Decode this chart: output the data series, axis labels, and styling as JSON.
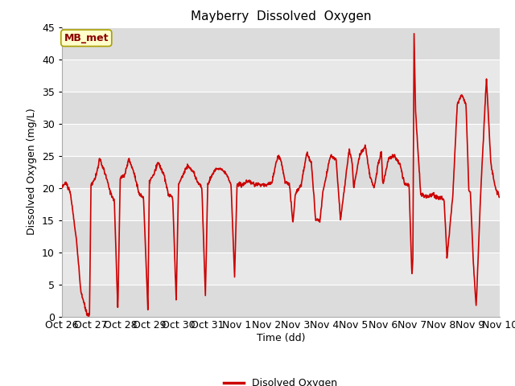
{
  "title": "Mayberry  Dissolved  Oxygen",
  "xlabel": "Time (dd)",
  "ylabel": "Dissolved Oxygen (mg/L)",
  "legend_label": "Disolved Oxygen",
  "annotation_text": "MB_met",
  "ylim": [
    0,
    45
  ],
  "line_color": "#cc0000",
  "line_width": 1.2,
  "fig_bg": "#ffffff",
  "plot_bg": "#dcdcdc",
  "band_colors": [
    "#dcdcdc",
    "#e8e8e8"
  ],
  "xtick_labels": [
    "Oct 26",
    "Oct 27",
    "Oct 28",
    "Oct 29",
    "Oct 30",
    "Oct 31",
    "Nov 1",
    "Nov 2",
    "Nov 3",
    "Nov 4",
    "Nov 5",
    "Nov 6",
    "Nov 7",
    "Nov 8",
    "Nov 9",
    "Nov 10"
  ],
  "annotation_box_facecolor": "#ffffcc",
  "annotation_box_edgecolor": "#aaa000",
  "yticks": [
    0,
    5,
    10,
    15,
    20,
    25,
    30,
    35,
    40,
    45
  ],
  "key_times": [
    0.0,
    0.15,
    0.3,
    0.5,
    0.65,
    0.85,
    0.95,
    1.0,
    1.15,
    1.3,
    1.5,
    1.65,
    1.8,
    1.92,
    2.0,
    2.15,
    2.3,
    2.5,
    2.65,
    2.8,
    2.95,
    3.0,
    3.15,
    3.3,
    3.5,
    3.65,
    3.8,
    3.92,
    4.0,
    4.15,
    4.3,
    4.5,
    4.65,
    4.8,
    4.92,
    5.0,
    5.15,
    5.3,
    5.5,
    5.65,
    5.8,
    5.92,
    6.0,
    6.2,
    6.4,
    6.6,
    6.8,
    6.95,
    7.0,
    7.2,
    7.4,
    7.5,
    7.65,
    7.8,
    7.92,
    8.0,
    8.2,
    8.4,
    8.55,
    8.7,
    8.85,
    8.95,
    9.0,
    9.2,
    9.4,
    9.55,
    9.7,
    9.85,
    9.95,
    10.0,
    10.2,
    10.4,
    10.55,
    10.7,
    10.85,
    10.95,
    11.0,
    11.2,
    11.4,
    11.6,
    11.75,
    11.9,
    11.97,
    12.0,
    12.03,
    12.07,
    12.12,
    12.3,
    12.5,
    12.7,
    12.85,
    12.95,
    13.0,
    13.1,
    13.2,
    13.4,
    13.55,
    13.7,
    13.85,
    13.95,
    14.0,
    14.1,
    14.2,
    14.35,
    14.55,
    14.7,
    14.85,
    14.95,
    15.0
  ],
  "key_values": [
    20.2,
    20.8,
    19.0,
    12.0,
    4.0,
    0.5,
    0.3,
    20.5,
    21.5,
    24.5,
    22.0,
    19.5,
    18.0,
    0.8,
    21.5,
    22.0,
    24.5,
    22.0,
    19.0,
    18.5,
    1.0,
    21.0,
    22.0,
    24.0,
    22.0,
    19.0,
    18.5,
    2.5,
    20.5,
    22.0,
    23.5,
    22.5,
    21.0,
    20.0,
    3.0,
    20.5,
    22.0,
    23.0,
    23.0,
    22.0,
    20.5,
    5.8,
    20.5,
    20.5,
    21.0,
    20.5,
    20.5,
    20.5,
    20.5,
    20.8,
    25.0,
    24.5,
    21.0,
    20.5,
    14.5,
    19.0,
    20.5,
    25.5,
    24.0,
    15.0,
    15.0,
    19.5,
    20.5,
    25.0,
    24.5,
    15.0,
    20.5,
    26.0,
    24.0,
    20.0,
    25.0,
    26.5,
    22.0,
    20.0,
    24.0,
    25.5,
    20.5,
    24.5,
    25.0,
    23.5,
    20.5,
    20.5,
    9.5,
    6.5,
    9.0,
    44.0,
    32.0,
    19.0,
    18.5,
    19.0,
    18.5,
    18.5,
    18.5,
    18.0,
    9.0,
    19.0,
    33.0,
    34.5,
    33.0,
    19.5,
    19.5,
    8.5,
    1.5,
    19.0,
    37.0,
    24.0,
    20.0,
    19.0,
    18.5
  ]
}
